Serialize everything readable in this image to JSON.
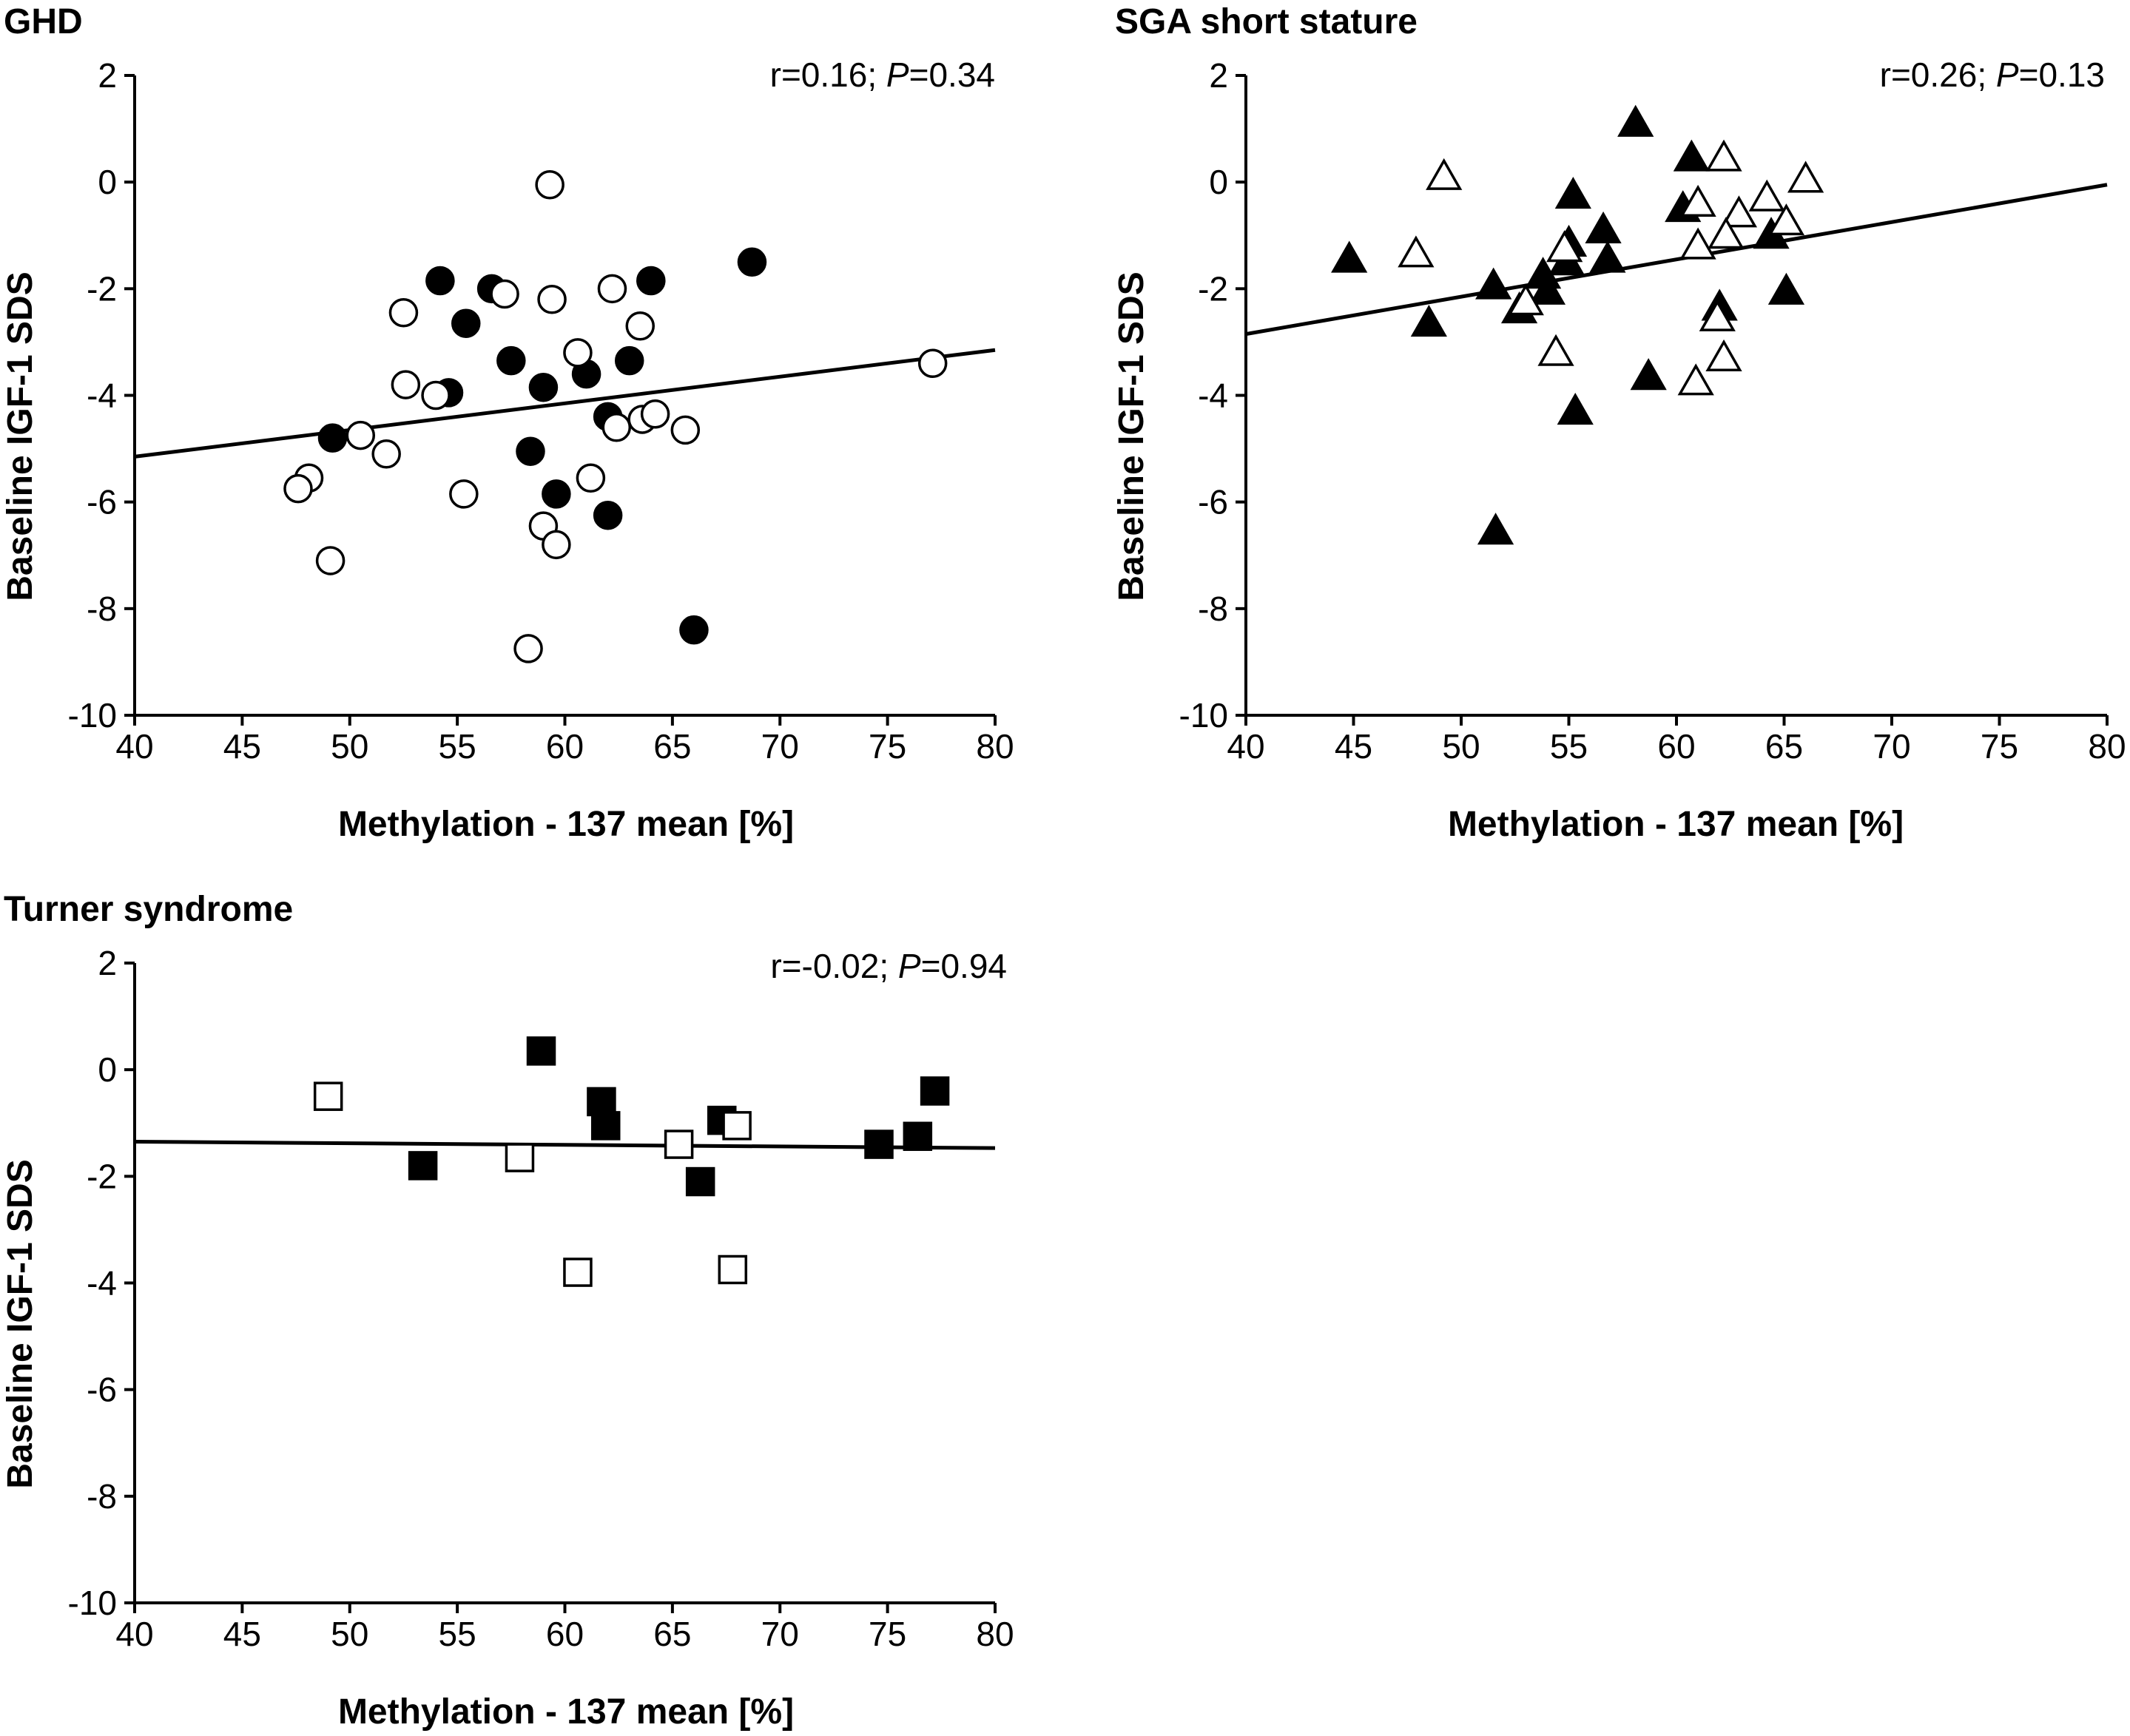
{
  "chart_data": [
    {
      "type": "scatter",
      "title": "GHD",
      "xlabel": "Methylation - 137 mean [%]",
      "ylabel": "Baseline IGF-1 SDS",
      "xlim": [
        40,
        80
      ],
      "ylim": [
        -10,
        2
      ],
      "xticks": [
        40,
        45,
        50,
        55,
        60,
        65,
        70,
        75,
        80
      ],
      "yticks": [
        2,
        0,
        -2,
        -4,
        -6,
        -8,
        -10
      ],
      "xtick_labels": [
        "40",
        "45",
        "50",
        "55",
        "60",
        "65",
        "70",
        "75",
        "80"
      ],
      "ytick_labels": [
        "2",
        "0",
        "-2",
        "-4",
        "-6",
        "-8",
        "-10"
      ],
      "stats": {
        "r": "r=0.16; ",
        "p_letter": "P",
        "p_value": "=0.34"
      },
      "marker": "circle",
      "regression": {
        "x": [
          40,
          80
        ],
        "y": [
          -5.15,
          -3.15
        ]
      },
      "series": [
        {
          "name": "filled",
          "fill": "#000000",
          "points": [
            [
              54.2,
              -1.85
            ],
            [
              56.6,
              -2.0
            ],
            [
              64.0,
              -1.85
            ],
            [
              68.7,
              -1.5
            ],
            [
              55.4,
              -2.65
            ],
            [
              57.5,
              -3.35
            ],
            [
              63.0,
              -3.35
            ],
            [
              61.0,
              -3.6
            ],
            [
              59.0,
              -3.85
            ],
            [
              54.6,
              -3.95
            ],
            [
              62.0,
              -4.4
            ],
            [
              49.2,
              -4.8
            ],
            [
              58.4,
              -5.05
            ],
            [
              59.6,
              -5.85
            ],
            [
              62.0,
              -6.25
            ],
            [
              66.0,
              -8.4
            ]
          ]
        },
        {
          "name": "open",
          "fill": "#ffffff",
          "points": [
            [
              59.3,
              -0.05
            ],
            [
              57.2,
              -2.1
            ],
            [
              59.4,
              -2.2
            ],
            [
              62.2,
              -2.0
            ],
            [
              52.5,
              -2.45
            ],
            [
              63.5,
              -2.7
            ],
            [
              60.6,
              -3.2
            ],
            [
              52.6,
              -3.8
            ],
            [
              54.0,
              -4.0
            ],
            [
              63.6,
              -4.45
            ],
            [
              64.2,
              -4.35
            ],
            [
              62.4,
              -4.6
            ],
            [
              65.6,
              -4.65
            ],
            [
              50.5,
              -4.75
            ],
            [
              51.7,
              -5.1
            ],
            [
              48.1,
              -5.55
            ],
            [
              47.6,
              -5.75
            ],
            [
              55.3,
              -5.85
            ],
            [
              61.2,
              -5.55
            ],
            [
              59.0,
              -6.45
            ],
            [
              59.6,
              -6.8
            ],
            [
              49.1,
              -7.1
            ],
            [
              58.3,
              -8.75
            ],
            [
              77.1,
              -3.4
            ]
          ]
        }
      ]
    },
    {
      "type": "scatter",
      "title": "SGA short stature",
      "xlabel": "Methylation - 137 mean [%]",
      "ylabel": "Baseline IGF-1 SDS",
      "xlim": [
        40,
        80
      ],
      "ylim": [
        -10,
        2
      ],
      "xticks": [
        40,
        45,
        50,
        55,
        60,
        65,
        70,
        75,
        80
      ],
      "yticks": [
        2,
        0,
        -2,
        -4,
        -6,
        -8,
        -10
      ],
      "xtick_labels": [
        "40",
        "45",
        "50",
        "55",
        "60",
        "65",
        "70",
        "75",
        "80"
      ],
      "ytick_labels": [
        "2",
        "0",
        "-2",
        "-4",
        "-6",
        "-8",
        "-10"
      ],
      "stats": {
        "r": "r=0.26; ",
        "p_letter": "P",
        "p_value": "=0.13"
      },
      "marker": "triangle",
      "regression": {
        "x": [
          40,
          80
        ],
        "y": [
          -2.85,
          -0.05
        ]
      },
      "series": [
        {
          "name": "filled",
          "fill": "#000000",
          "points": [
            [
              58.1,
              1.1
            ],
            [
              60.7,
              0.45
            ],
            [
              55.2,
              -0.25
            ],
            [
              60.3,
              -0.5
            ],
            [
              56.6,
              -0.9
            ],
            [
              55.0,
              -1.15
            ],
            [
              44.8,
              -1.45
            ],
            [
              54.9,
              -1.5
            ],
            [
              56.8,
              -1.45
            ],
            [
              53.8,
              -1.75
            ],
            [
              64.4,
              -1.0
            ],
            [
              51.5,
              -1.95
            ],
            [
              54.0,
              -2.05
            ],
            [
              65.1,
              -2.05
            ],
            [
              52.7,
              -2.4
            ],
            [
              62.0,
              -2.35
            ],
            [
              48.5,
              -2.65
            ],
            [
              58.7,
              -3.65
            ],
            [
              55.3,
              -4.3
            ],
            [
              51.6,
              -6.55
            ]
          ]
        },
        {
          "name": "open",
          "fill": "#ffffff",
          "points": [
            [
              49.2,
              0.1
            ],
            [
              62.2,
              0.45
            ],
            [
              66.0,
              0.05
            ],
            [
              64.2,
              -0.3
            ],
            [
              61.0,
              -0.4
            ],
            [
              62.9,
              -0.6
            ],
            [
              65.1,
              -0.75
            ],
            [
              62.3,
              -1.0
            ],
            [
              61.0,
              -1.2
            ],
            [
              54.8,
              -1.25
            ],
            [
              47.9,
              -1.35
            ],
            [
              53.0,
              -2.25
            ],
            [
              61.9,
              -2.55
            ],
            [
              54.4,
              -3.2
            ],
            [
              62.2,
              -3.3
            ],
            [
              60.9,
              -3.75
            ]
          ]
        }
      ]
    },
    {
      "type": "scatter",
      "title": "Turner syndrome",
      "xlabel": "Methylation - 137 mean [%]",
      "ylabel": "Baseline IGF-1 SDS",
      "xlim": [
        40,
        80
      ],
      "ylim": [
        -10,
        2
      ],
      "xticks": [
        40,
        45,
        50,
        55,
        60,
        65,
        70,
        75,
        80
      ],
      "yticks": [
        2,
        0,
        -2,
        -4,
        -6,
        -8,
        -10
      ],
      "xtick_labels": [
        "40",
        "45",
        "50",
        "55",
        "60",
        "65",
        "70",
        "75",
        "80"
      ],
      "ytick_labels": [
        "2",
        "0",
        "-2",
        "-4",
        "-6",
        "-8",
        "-10"
      ],
      "stats": {
        "r": "r=-0.02; ",
        "p_letter": "P",
        "p_value": "=0.94"
      },
      "marker": "square",
      "regression": {
        "x": [
          40,
          80
        ],
        "y": [
          -1.35,
          -1.47
        ]
      },
      "series": [
        {
          "name": "filled",
          "fill": "#000000",
          "points": [
            [
              58.9,
              0.35
            ],
            [
              61.7,
              -0.6
            ],
            [
              61.9,
              -1.05
            ],
            [
              67.3,
              -0.95
            ],
            [
              77.2,
              -0.4
            ],
            [
              53.4,
              -1.8
            ],
            [
              74.6,
              -1.4
            ],
            [
              76.4,
              -1.25
            ],
            [
              66.3,
              -2.1
            ]
          ]
        },
        {
          "name": "open",
          "fill": "#ffffff",
          "points": [
            [
              49.0,
              -0.5
            ],
            [
              57.9,
              -1.65
            ],
            [
              65.3,
              -1.4
            ],
            [
              68.0,
              -1.05
            ],
            [
              60.6,
              -3.8
            ],
            [
              67.8,
              -3.75
            ]
          ]
        }
      ]
    }
  ]
}
